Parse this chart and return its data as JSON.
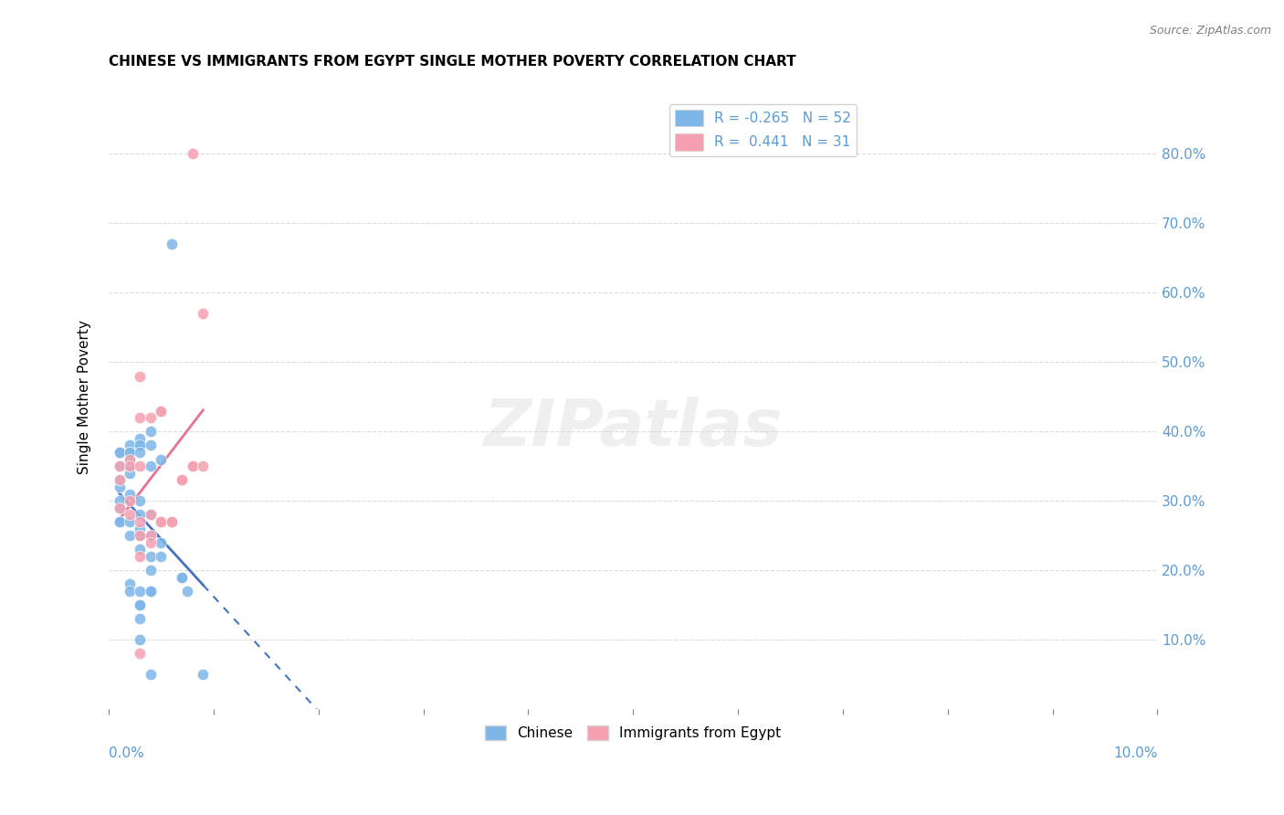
{
  "title": "CHINESE VS IMMIGRANTS FROM EGYPT SINGLE MOTHER POVERTY CORRELATION CHART",
  "source": "Source: ZipAtlas.com",
  "ylabel": "Single Mother Poverty",
  "legend_chinese": "Chinese",
  "legend_egypt": "Immigrants from Egypt",
  "r_chinese": -0.265,
  "n_chinese": 52,
  "r_egypt": 0.441,
  "n_egypt": 31,
  "watermark": "ZIPatlas",
  "chinese_color": "#7EB6E8",
  "egypt_color": "#F4A0B0",
  "chinese_line_color": "#4472C4",
  "egypt_line_color": "#E87090",
  "axis_color": "#5B9BD5",
  "grid_color": "#CCCCCC",
  "background_color": "#FFFFFF",
  "chinese_points": [
    [
      0.001,
      0.29
    ],
    [
      0.001,
      0.32
    ],
    [
      0.001,
      0.35
    ],
    [
      0.001,
      0.37
    ],
    [
      0.001,
      0.37
    ],
    [
      0.001,
      0.27
    ],
    [
      0.001,
      0.33
    ],
    [
      0.001,
      0.3
    ],
    [
      0.001,
      0.27
    ],
    [
      0.002,
      0.36
    ],
    [
      0.002,
      0.38
    ],
    [
      0.002,
      0.31
    ],
    [
      0.002,
      0.37
    ],
    [
      0.002,
      0.27
    ],
    [
      0.002,
      0.37
    ],
    [
      0.002,
      0.34
    ],
    [
      0.002,
      0.35
    ],
    [
      0.002,
      0.25
    ],
    [
      0.002,
      0.18
    ],
    [
      0.002,
      0.17
    ],
    [
      0.003,
      0.38
    ],
    [
      0.003,
      0.39
    ],
    [
      0.003,
      0.38
    ],
    [
      0.003,
      0.37
    ],
    [
      0.003,
      0.3
    ],
    [
      0.003,
      0.28
    ],
    [
      0.003,
      0.26
    ],
    [
      0.003,
      0.25
    ],
    [
      0.003,
      0.23
    ],
    [
      0.003,
      0.17
    ],
    [
      0.003,
      0.15
    ],
    [
      0.003,
      0.15
    ],
    [
      0.003,
      0.13
    ],
    [
      0.003,
      0.1
    ],
    [
      0.004,
      0.4
    ],
    [
      0.004,
      0.38
    ],
    [
      0.004,
      0.35
    ],
    [
      0.004,
      0.28
    ],
    [
      0.004,
      0.25
    ],
    [
      0.004,
      0.22
    ],
    [
      0.004,
      0.2
    ],
    [
      0.004,
      0.17
    ],
    [
      0.004,
      0.17
    ],
    [
      0.004,
      0.05
    ],
    [
      0.005,
      0.36
    ],
    [
      0.005,
      0.24
    ],
    [
      0.005,
      0.22
    ],
    [
      0.006,
      0.67
    ],
    [
      0.007,
      0.19
    ],
    [
      0.007,
      0.19
    ],
    [
      0.0075,
      0.17
    ],
    [
      0.009,
      0.05
    ]
  ],
  "egypt_points": [
    [
      0.001,
      0.29
    ],
    [
      0.001,
      0.33
    ],
    [
      0.001,
      0.35
    ],
    [
      0.002,
      0.3
    ],
    [
      0.002,
      0.36
    ],
    [
      0.002,
      0.35
    ],
    [
      0.002,
      0.28
    ],
    [
      0.003,
      0.48
    ],
    [
      0.003,
      0.42
    ],
    [
      0.003,
      0.35
    ],
    [
      0.003,
      0.27
    ],
    [
      0.003,
      0.25
    ],
    [
      0.003,
      0.22
    ],
    [
      0.003,
      0.08
    ],
    [
      0.004,
      0.42
    ],
    [
      0.004,
      0.28
    ],
    [
      0.004,
      0.25
    ],
    [
      0.004,
      0.24
    ],
    [
      0.005,
      0.43
    ],
    [
      0.005,
      0.43
    ],
    [
      0.005,
      0.27
    ],
    [
      0.005,
      0.27
    ],
    [
      0.006,
      0.27
    ],
    [
      0.006,
      0.27
    ],
    [
      0.007,
      0.33
    ],
    [
      0.007,
      0.33
    ],
    [
      0.008,
      0.8
    ],
    [
      0.008,
      0.35
    ],
    [
      0.008,
      0.35
    ],
    [
      0.009,
      0.57
    ],
    [
      0.009,
      0.35
    ]
  ],
  "xlim": [
    0.0,
    0.1
  ],
  "ylim": [
    0.0,
    0.9
  ],
  "yticks": [
    0.1,
    0.2,
    0.3,
    0.4,
    0.5,
    0.6,
    0.7,
    0.8
  ],
  "ytick_labels_right": [
    "10.0%",
    "20.0%",
    "30.0%",
    "40.0%",
    "50.0%",
    "60.0%",
    "70.0%",
    "80.0%"
  ],
  "xticks": [
    0.0,
    0.01,
    0.02,
    0.03,
    0.04,
    0.05,
    0.06,
    0.07,
    0.08,
    0.09,
    0.1
  ]
}
